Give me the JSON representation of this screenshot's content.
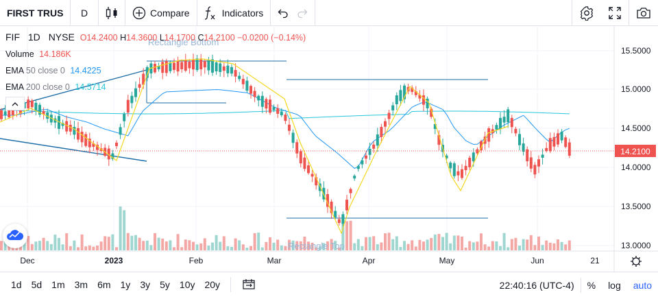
{
  "toolbar": {
    "symbol": "FIRST TRUS",
    "interval": "D",
    "compare_label": "Compare",
    "indicators_label": "Indicators"
  },
  "legend": {
    "symbol": "FIF",
    "interval": "1D",
    "exchange": "NYSE",
    "open_label": "O",
    "open": "14.2400",
    "high_label": "H",
    "high": "14.3600",
    "low_label": "L",
    "low": "14.1700",
    "close_label": "C",
    "close": "14.2100",
    "change": "−0.0200 (−0.14%)"
  },
  "indicators": {
    "volume_name": "Volume",
    "volume_value": "14.186K",
    "ema50_name": "EMA",
    "ema50_params": "50 close 0",
    "ema50_value": "14.4225",
    "ema200_name": "EMA",
    "ema200_params": "200 close 0",
    "ema200_value": "14.5714"
  },
  "drawings": {
    "rect_bottom_label": "Rectangle Bottom",
    "rect_top_label": "Rectangle Top"
  },
  "price_axis": {
    "ticks": [
      "15.5000",
      "15.0000",
      "14.5000",
      "14.0000",
      "13.5000",
      "13.0000"
    ],
    "last_price": "14.2100"
  },
  "time_axis": {
    "ticks": [
      "Dec",
      "2023",
      "Feb",
      "Mar",
      "Apr",
      "May",
      "Jun",
      "21"
    ]
  },
  "bottombar": {
    "timeframes": [
      "1d",
      "5d",
      "1m",
      "3m",
      "6m",
      "1y",
      "3y",
      "5y",
      "10y",
      "20y"
    ],
    "clock": "22:40:16 (UTC-4)",
    "percent_label": "%",
    "log_label": "log",
    "auto_label": "auto"
  },
  "colors": {
    "up": "#26a69a",
    "down": "#ef5350",
    "ema50": "#2196f3",
    "ema200": "#26c6da",
    "zigzag": "#f5d820",
    "drawing": "#1e6ea7",
    "accent": "#2962ff"
  }
}
